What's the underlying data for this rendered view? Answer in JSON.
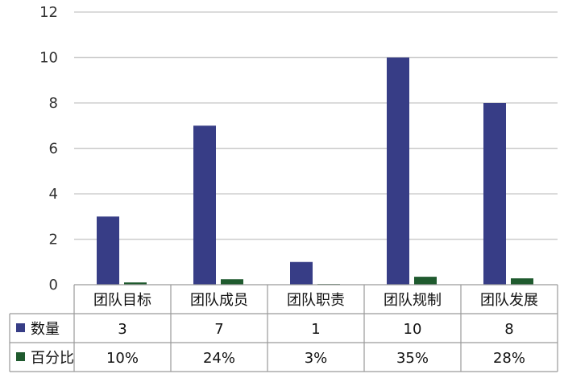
{
  "chart_data": {
    "type": "bar",
    "categories": [
      "团队目标",
      "团队成员",
      "团队职责",
      "团队规制",
      "团队发展"
    ],
    "series": [
      {
        "name": "数量",
        "values": [
          3,
          7,
          1,
          10,
          8
        ],
        "display": [
          "3",
          "7",
          "1",
          "10",
          "8"
        ],
        "color": "#373D86"
      },
      {
        "name": "百分比",
        "values": [
          0.1,
          0.24,
          0.03,
          0.35,
          0.28
        ],
        "display": [
          "10%",
          "24%",
          "3%",
          "35%",
          "28%"
        ],
        "color": "#1F5A2E"
      }
    ],
    "ylim": [
      0,
      12
    ],
    "yticks": [
      0,
      2,
      4,
      6,
      8,
      10,
      12
    ],
    "grid": true,
    "legend": "data-table"
  }
}
